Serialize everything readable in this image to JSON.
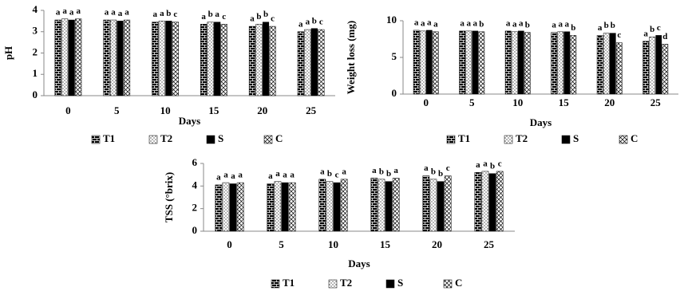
{
  "chart_data": [
    {
      "type": "bar",
      "x_label": "Days",
      "y_label": "pH",
      "categories": [
        "0",
        "5",
        "10",
        "15",
        "20",
        "25"
      ],
      "ylim": [
        0,
        4
      ],
      "yticks": [
        0,
        1,
        2,
        3,
        4
      ],
      "series": [
        {
          "name": "T1",
          "pattern": "brick",
          "values": [
            3.55,
            3.55,
            3.45,
            3.35,
            3.25,
            3.0
          ],
          "letters": [
            "a",
            "a",
            "a",
            "a",
            "a",
            "a"
          ]
        },
        {
          "name": "T2",
          "pattern": "dots",
          "values": [
            3.6,
            3.55,
            3.5,
            3.45,
            3.35,
            3.1
          ],
          "letters": [
            "a",
            "a",
            "a",
            "b",
            "b",
            "a"
          ]
        },
        {
          "name": "S",
          "pattern": "solid",
          "values": [
            3.55,
            3.5,
            3.5,
            3.45,
            3.45,
            3.15
          ],
          "letters": [
            "a",
            "a",
            "b",
            "a",
            "b",
            "b"
          ]
        },
        {
          "name": "C",
          "pattern": "cross",
          "values": [
            3.6,
            3.55,
            3.45,
            3.35,
            3.25,
            3.1
          ],
          "letters": [
            "a",
            "a",
            "c",
            "c",
            "c",
            "c"
          ]
        }
      ]
    },
    {
      "type": "bar",
      "x_label": "Days",
      "y_label": "Weight loss (mg)",
      "categories": [
        "0",
        "5",
        "10",
        "15",
        "20",
        "25"
      ],
      "ylim": [
        0,
        10
      ],
      "yticks": [
        0,
        5,
        10
      ],
      "series": [
        {
          "name": "T1",
          "pattern": "brick",
          "values": [
            8.7,
            8.6,
            8.6,
            8.4,
            8.0,
            7.2
          ],
          "letters": [
            "a",
            "a",
            "a",
            "a",
            "a",
            "a"
          ]
        },
        {
          "name": "T2",
          "pattern": "dots",
          "values": [
            8.6,
            8.6,
            8.5,
            8.5,
            8.3,
            7.8
          ],
          "letters": [
            "a",
            "a",
            "a",
            "a",
            "b",
            "b"
          ]
        },
        {
          "name": "S",
          "pattern": "solid",
          "values": [
            8.7,
            8.6,
            8.6,
            8.5,
            8.3,
            8.0
          ],
          "letters": [
            "a",
            "a",
            "a",
            "a",
            "b",
            "c"
          ]
        },
        {
          "name": "C",
          "pattern": "cross",
          "values": [
            8.5,
            8.5,
            8.4,
            8.0,
            7.0,
            6.8
          ],
          "letters": [
            "a",
            "b",
            "b",
            "b",
            "c",
            "d"
          ]
        }
      ]
    },
    {
      "type": "bar",
      "x_label": "Days",
      "y_label": "TSS (°brix)",
      "categories": [
        "0",
        "5",
        "10",
        "15",
        "20",
        "25"
      ],
      "ylim": [
        0,
        6
      ],
      "yticks": [
        0,
        2,
        4,
        6
      ],
      "series": [
        {
          "name": "T1",
          "pattern": "brick",
          "values": [
            4.1,
            4.2,
            4.6,
            4.7,
            4.9,
            5.2
          ],
          "letters": [
            "a",
            "a",
            "a",
            "a",
            "a",
            "a"
          ]
        },
        {
          "name": "T2",
          "pattern": "dots",
          "values": [
            4.3,
            4.4,
            4.4,
            4.6,
            4.6,
            5.3
          ],
          "letters": [
            "a",
            "a",
            "b",
            "b",
            "b",
            "a"
          ]
        },
        {
          "name": "S",
          "pattern": "solid",
          "values": [
            4.2,
            4.3,
            4.3,
            4.4,
            4.4,
            5.1
          ],
          "letters": [
            "a",
            "a",
            "c",
            "b",
            "b",
            "b"
          ]
        },
        {
          "name": "C",
          "pattern": "cross",
          "values": [
            4.3,
            4.3,
            4.6,
            4.7,
            4.9,
            5.3
          ],
          "letters": [
            "a",
            "a",
            "a",
            "a",
            "c",
            "c"
          ]
        }
      ]
    }
  ]
}
